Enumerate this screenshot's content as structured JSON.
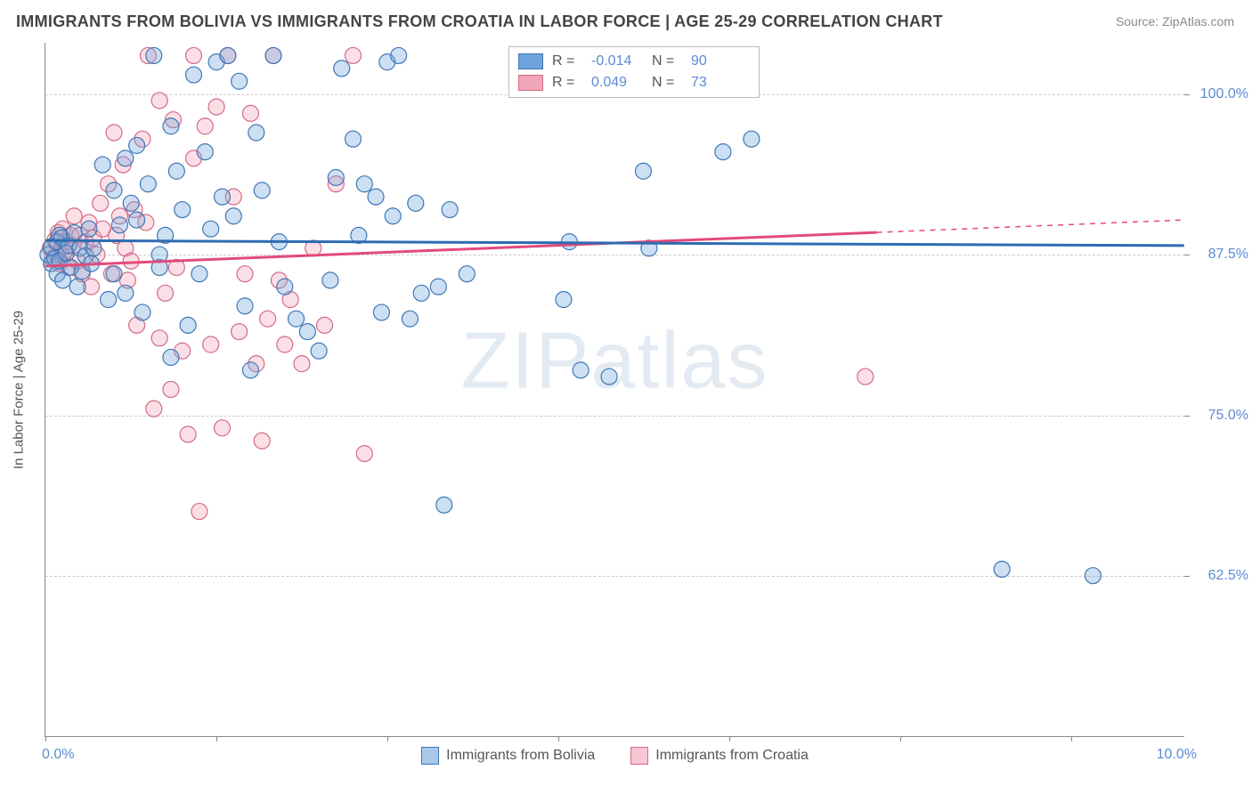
{
  "title": "IMMIGRANTS FROM BOLIVIA VS IMMIGRANTS FROM CROATIA IN LABOR FORCE | AGE 25-29 CORRELATION CHART",
  "source_label": "Source: ZipAtlas.com",
  "watermark_text": "ZIPatlas",
  "ylabel": "In Labor Force | Age 25-29",
  "chart": {
    "type": "scatter-with-regression",
    "xlim": [
      0.0,
      10.0
    ],
    "ylim": [
      50.0,
      104.0
    ],
    "x_ticks": [
      0.0,
      1.5,
      3.0,
      4.5,
      6.0,
      7.5,
      9.0
    ],
    "y_ticks": [
      62.5,
      75.0,
      87.5,
      100.0
    ],
    "x_lim_labels": {
      "left": "0.0%",
      "right": "10.0%"
    },
    "y_tick_labels": [
      "62.5%",
      "75.0%",
      "87.5%",
      "100.0%"
    ],
    "background_color": "#ffffff",
    "grid_color": "#cccccc",
    "axis_color": "#888888",
    "label_fontsize": 15,
    "tick_fontsize": 16,
    "tick_label_color": "#5b8bd4",
    "marker_radius": 9,
    "marker_fill_opacity": 0.35,
    "marker_stroke_width": 1.2,
    "line_width": 3,
    "series": [
      {
        "name": "Immigrants from Bolivia",
        "color": "#6fa3db",
        "stroke": "#3f77b5",
        "line_color": "#2e6bb0",
        "R": "-0.014",
        "N": "90",
        "regression": {
          "x1": 0.0,
          "y1": 88.6,
          "x2": 10.0,
          "y2": 88.2,
          "solid_to_x": 10.0
        },
        "points": [
          [
            0.02,
            87.5
          ],
          [
            0.05,
            86.8
          ],
          [
            0.05,
            88.1
          ],
          [
            0.08,
            87.2
          ],
          [
            0.1,
            88.5
          ],
          [
            0.1,
            86.0
          ],
          [
            0.12,
            89.0
          ],
          [
            0.12,
            87.0
          ],
          [
            0.14,
            88.8
          ],
          [
            0.15,
            85.5
          ],
          [
            0.18,
            87.6
          ],
          [
            0.2,
            88.2
          ],
          [
            0.22,
            86.5
          ],
          [
            0.25,
            89.2
          ],
          [
            0.28,
            85.0
          ],
          [
            0.3,
            88.0
          ],
          [
            0.32,
            86.2
          ],
          [
            0.35,
            87.4
          ],
          [
            0.38,
            89.5
          ],
          [
            0.4,
            86.8
          ],
          [
            0.42,
            88.0
          ],
          [
            0.5,
            94.5
          ],
          [
            0.55,
            84.0
          ],
          [
            0.6,
            92.5
          ],
          [
            0.6,
            86.0
          ],
          [
            0.65,
            89.8
          ],
          [
            0.7,
            84.5
          ],
          [
            0.7,
            95.0
          ],
          [
            0.75,
            91.5
          ],
          [
            0.8,
            90.2
          ],
          [
            0.8,
            96.0
          ],
          [
            0.85,
            83.0
          ],
          [
            0.9,
            93.0
          ],
          [
            0.95,
            103.0
          ],
          [
            1.0,
            86.5
          ],
          [
            1.0,
            87.5
          ],
          [
            1.05,
            89.0
          ],
          [
            1.1,
            79.5
          ],
          [
            1.1,
            97.5
          ],
          [
            1.15,
            94.0
          ],
          [
            1.2,
            91.0
          ],
          [
            1.25,
            82.0
          ],
          [
            1.3,
            101.5
          ],
          [
            1.35,
            86.0
          ],
          [
            1.4,
            95.5
          ],
          [
            1.45,
            89.5
          ],
          [
            1.5,
            102.5
          ],
          [
            1.55,
            92.0
          ],
          [
            1.6,
            103.0
          ],
          [
            1.65,
            90.5
          ],
          [
            1.7,
            101.0
          ],
          [
            1.75,
            83.5
          ],
          [
            1.8,
            78.5
          ],
          [
            1.85,
            97.0
          ],
          [
            1.9,
            92.5
          ],
          [
            2.0,
            103.0
          ],
          [
            2.05,
            88.5
          ],
          [
            2.1,
            85.0
          ],
          [
            2.2,
            82.5
          ],
          [
            2.3,
            81.5
          ],
          [
            2.4,
            80.0
          ],
          [
            2.5,
            85.5
          ],
          [
            2.55,
            93.5
          ],
          [
            2.6,
            102.0
          ],
          [
            2.7,
            96.5
          ],
          [
            2.75,
            89.0
          ],
          [
            2.8,
            93.0
          ],
          [
            2.9,
            92.0
          ],
          [
            2.95,
            83.0
          ],
          [
            3.0,
            102.5
          ],
          [
            3.05,
            90.5
          ],
          [
            3.1,
            103.0
          ],
          [
            3.2,
            82.5
          ],
          [
            3.25,
            91.5
          ],
          [
            3.3,
            84.5
          ],
          [
            3.45,
            85.0
          ],
          [
            3.5,
            68.0
          ],
          [
            3.55,
            91.0
          ],
          [
            3.7,
            86.0
          ],
          [
            4.55,
            84.0
          ],
          [
            4.6,
            88.5
          ],
          [
            4.7,
            78.5
          ],
          [
            4.95,
            78.0
          ],
          [
            5.25,
            94.0
          ],
          [
            5.3,
            88.0
          ],
          [
            5.95,
            95.5
          ],
          [
            6.05,
            103.0
          ],
          [
            6.2,
            96.5
          ],
          [
            8.4,
            63.0
          ],
          [
            9.2,
            62.5
          ]
        ]
      },
      {
        "name": "Immigrants from Croatia",
        "color": "#f0a6b8",
        "stroke": "#d46a85",
        "line_color": "#e24a7a",
        "R": "0.049",
        "N": "73",
        "regression": {
          "x1": 0.0,
          "y1": 86.6,
          "x2": 10.0,
          "y2": 90.2,
          "solid_to_x": 7.3
        },
        "points": [
          [
            0.04,
            88.0
          ],
          [
            0.06,
            87.2
          ],
          [
            0.08,
            88.6
          ],
          [
            0.1,
            87.5
          ],
          [
            0.11,
            89.2
          ],
          [
            0.12,
            86.8
          ],
          [
            0.14,
            88.0
          ],
          [
            0.15,
            89.5
          ],
          [
            0.17,
            87.8
          ],
          [
            0.18,
            88.5
          ],
          [
            0.2,
            86.5
          ],
          [
            0.22,
            89.0
          ],
          [
            0.24,
            88.2
          ],
          [
            0.25,
            90.5
          ],
          [
            0.28,
            87.0
          ],
          [
            0.3,
            89.0
          ],
          [
            0.32,
            86.0
          ],
          [
            0.35,
            88.5
          ],
          [
            0.38,
            90.0
          ],
          [
            0.4,
            85.0
          ],
          [
            0.42,
            88.8
          ],
          [
            0.45,
            87.5
          ],
          [
            0.48,
            91.5
          ],
          [
            0.5,
            89.5
          ],
          [
            0.55,
            93.0
          ],
          [
            0.58,
            86.0
          ],
          [
            0.6,
            97.0
          ],
          [
            0.62,
            89.0
          ],
          [
            0.65,
            90.5
          ],
          [
            0.68,
            94.5
          ],
          [
            0.7,
            88.0
          ],
          [
            0.72,
            85.5
          ],
          [
            0.75,
            87.0
          ],
          [
            0.78,
            91.0
          ],
          [
            0.8,
            82.0
          ],
          [
            0.85,
            96.5
          ],
          [
            0.88,
            90.0
          ],
          [
            0.9,
            103.0
          ],
          [
            0.95,
            75.5
          ],
          [
            1.0,
            81.0
          ],
          [
            1.0,
            99.5
          ],
          [
            1.05,
            84.5
          ],
          [
            1.1,
            77.0
          ],
          [
            1.12,
            98.0
          ],
          [
            1.15,
            86.5
          ],
          [
            1.2,
            80.0
          ],
          [
            1.25,
            73.5
          ],
          [
            1.3,
            95.0
          ],
          [
            1.3,
            103.0
          ],
          [
            1.35,
            67.5
          ],
          [
            1.4,
            97.5
          ],
          [
            1.45,
            80.5
          ],
          [
            1.5,
            99.0
          ],
          [
            1.55,
            74.0
          ],
          [
            1.6,
            103.0
          ],
          [
            1.65,
            92.0
          ],
          [
            1.7,
            81.5
          ],
          [
            1.75,
            86.0
          ],
          [
            1.8,
            98.5
          ],
          [
            1.85,
            79.0
          ],
          [
            1.9,
            73.0
          ],
          [
            1.95,
            82.5
          ],
          [
            2.0,
            103.0
          ],
          [
            2.05,
            85.5
          ],
          [
            2.1,
            80.5
          ],
          [
            2.15,
            84.0
          ],
          [
            2.25,
            79.0
          ],
          [
            2.35,
            88.0
          ],
          [
            2.45,
            82.0
          ],
          [
            2.55,
            93.0
          ],
          [
            2.7,
            103.0
          ],
          [
            2.8,
            72.0
          ],
          [
            7.2,
            78.0
          ]
        ]
      }
    ]
  },
  "legend_stats_labels": {
    "R": "R =",
    "N": "N ="
  },
  "bottom_legend": {
    "items": [
      {
        "label": "Immigrants from Bolivia",
        "fill": "#a9c8ea",
        "stroke": "#3f77b5"
      },
      {
        "label": "Immigrants from Croatia",
        "fill": "#f6c7d3",
        "stroke": "#d46a85"
      }
    ]
  }
}
